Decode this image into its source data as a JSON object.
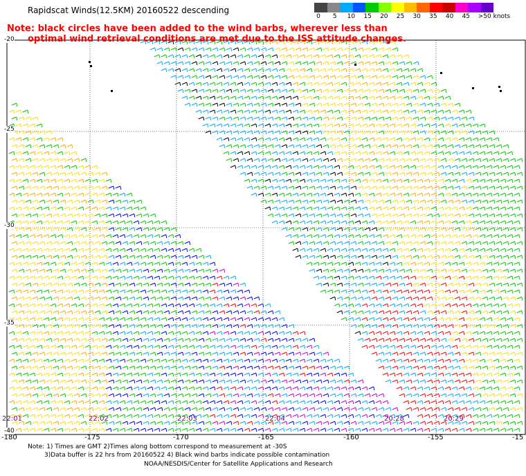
{
  "title": "Rapidscat Winds(12.5KM) 20160522 descending",
  "note": {
    "line1": "Note: black circles have been added to the wind barbs, wherever less than",
    "line2": "optimal wind retrieval conditions are met due to the ISS attitude changes."
  },
  "colorbar": {
    "colors": [
      "#444444",
      "#888888",
      "#00aaff",
      "#0055ff",
      "#00cc00",
      "#88ff00",
      "#ffff00",
      "#ffbb00",
      "#ff6600",
      "#ff0000",
      "#cc0000",
      "#ff00cc",
      "#aa00ff",
      "#6600cc"
    ],
    "labels": [
      "0",
      "5",
      "10",
      "15",
      "20",
      "25",
      "30",
      "35",
      "40",
      "45",
      ">50 knots"
    ]
  },
  "map": {
    "lat_labels": [
      "-20",
      "-25",
      "-30",
      "-35",
      "-40"
    ],
    "lon_labels": [
      "-180",
      "-175",
      "-170",
      "-165",
      "-160",
      "-155",
      "-15"
    ],
    "time_labels": [
      "22:01",
      "22:02",
      "22:03",
      "22:04",
      "20:28",
      "20:29"
    ]
  },
  "footer": {
    "line1": "Note: 1) Times are GMT 2)Times along bottom correspond to measurement at -30S",
    "line2": "3)Data buffer is 22 hrs from 20160522 4) Black wind barbs indicate possible contamination",
    "credit": "NOAA/NESDIS/Center for Satellite Applications and Research"
  }
}
